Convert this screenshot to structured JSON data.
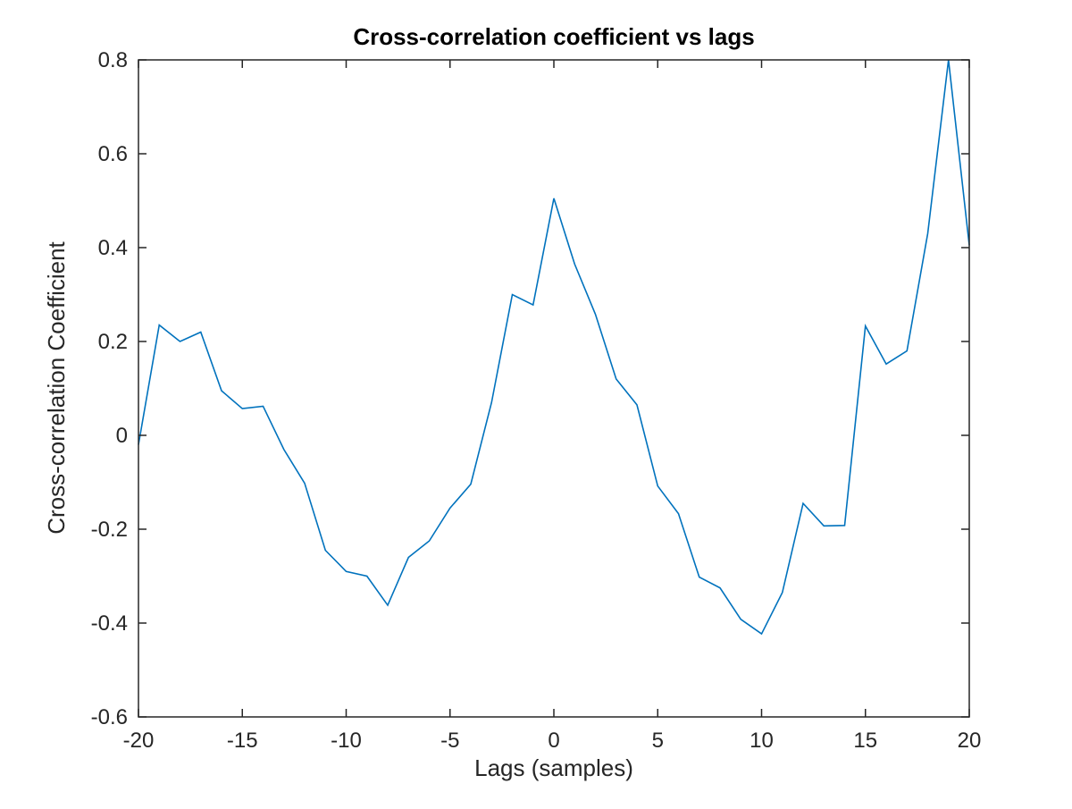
{
  "chart_data": {
    "type": "line",
    "title": "Cross-correlation coefficient vs lags",
    "xlabel": "Lags (samples)",
    "ylabel": "Cross-correlation Coefficient",
    "xlim": [
      -20,
      20
    ],
    "ylim": [
      -0.6,
      0.8
    ],
    "xticks": [
      -20,
      -15,
      -10,
      -5,
      0,
      5,
      10,
      15,
      20
    ],
    "xtick_labels": [
      "-20",
      "-15",
      "-10",
      "-5",
      "0",
      "5",
      "10",
      "15",
      "20"
    ],
    "yticks": [
      -0.6,
      -0.4,
      -0.2,
      0,
      0.2,
      0.4,
      0.6,
      0.8
    ],
    "ytick_labels": [
      "-0.6",
      "-0.4",
      "-0.2",
      "0",
      "0.2",
      "0.4",
      "0.6",
      "0.8"
    ],
    "grid": false,
    "line_color": "#0072BD",
    "axis_color": "#262626",
    "series": [
      {
        "x": [
          -20,
          -19,
          -18,
          -17,
          -16,
          -15,
          -14,
          -13,
          -12,
          -11,
          -10,
          -9,
          -8,
          -7,
          -6,
          -5,
          -4,
          -3,
          -2,
          -1,
          0,
          1,
          2,
          3,
          4,
          5,
          6,
          7,
          8,
          9,
          10,
          11,
          12,
          13,
          14,
          15,
          16,
          17,
          18,
          19,
          20
        ],
        "values": [
          -0.02,
          0.235,
          0.2,
          0.22,
          0.095,
          0.057,
          0.062,
          -0.03,
          -0.102,
          -0.245,
          -0.29,
          -0.3,
          -0.362,
          -0.26,
          -0.225,
          -0.155,
          -0.104,
          0.07,
          0.3,
          0.278,
          0.505,
          0.365,
          0.258,
          0.12,
          0.065,
          -0.108,
          -0.167,
          -0.302,
          -0.325,
          -0.392,
          -0.423,
          -0.335,
          -0.145,
          -0.193,
          -0.192,
          0.233,
          0.152,
          0.18,
          0.43,
          0.8,
          0.405
        ]
      }
    ]
  }
}
